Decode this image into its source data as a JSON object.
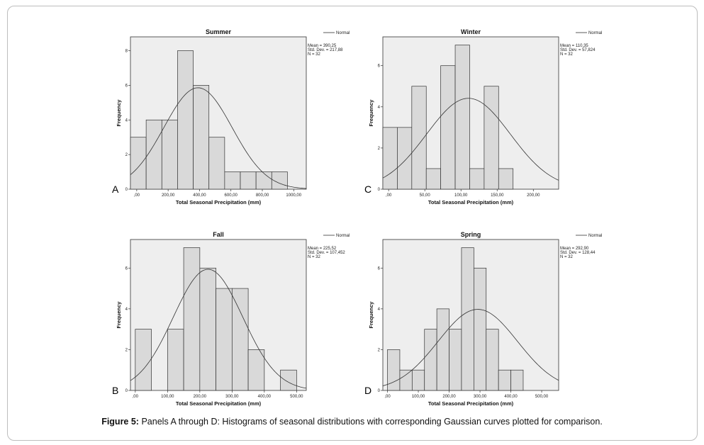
{
  "caption": {
    "label": "Figure 5:",
    "text": "Panels A through D: Histograms of seasonal distributions with corresponding Gaussian curves plotted for comparison."
  },
  "colors": {
    "bar_fill": "#d9d9d9",
    "plot_bg": "#eeeeee",
    "axis": "#333333",
    "curve": "#333333"
  },
  "chart_data": [
    {
      "type": "bar",
      "panel": "A",
      "title": "Summer",
      "xlabel": "Total Seasonal Precipitation (mm)",
      "ylabel": "Frequency",
      "legend": "Normal",
      "stats": [
        "Mean = 390,25",
        "Std. Dev. = 217,88",
        "N = 32"
      ],
      "mean": 390.25,
      "sd": 217.88,
      "n": 32,
      "bin_start": -40,
      "bin_width": 100,
      "values": [
        3,
        4,
        4,
        8,
        6,
        3,
        1,
        1,
        1,
        1
      ],
      "xlim": [
        -40,
        1080
      ],
      "ylim": [
        0,
        8.8
      ],
      "xticks": [
        0,
        200,
        400,
        600,
        800,
        1000
      ],
      "xtick_labels": [
        ",00",
        "200,00",
        "400,00",
        "600,00",
        "800,00",
        "1000,00"
      ],
      "yticks": [
        0,
        2,
        4,
        6,
        8
      ],
      "ytick_labels": [
        "0",
        "2",
        "4",
        "6",
        "8"
      ]
    },
    {
      "type": "bar",
      "panel": "C",
      "title": "Winter",
      "xlabel": "Total Seasonal Precipitation (mm)",
      "ylabel": "Frequency",
      "legend": "Normal",
      "stats": [
        "Mean = 110,35",
        "Std. Dev. = 57,824",
        "N = 32"
      ],
      "mean": 110.35,
      "sd": 57.824,
      "n": 32,
      "bin_start": -8,
      "bin_width": 20,
      "values": [
        3,
        3,
        5,
        1,
        6,
        7,
        1,
        5,
        1
      ],
      "xlim": [
        -8,
        235
      ],
      "ylim": [
        0,
        7.4
      ],
      "xticks": [
        0,
        50,
        100,
        150,
        200
      ],
      "xtick_labels": [
        ",00",
        "50,00",
        "100,00",
        "150,00",
        "200,00"
      ],
      "yticks": [
        0,
        2,
        4,
        6
      ],
      "ytick_labels": [
        "0",
        "2",
        "4",
        "6"
      ]
    },
    {
      "type": "bar",
      "panel": "B",
      "title": "Fall",
      "xlabel": "Total Seasonal Precipitation (mm)",
      "ylabel": "Frequency",
      "legend": "Normal",
      "stats": [
        "Mean = 225,52",
        "Std. Dev. = 107,452",
        "N = 32"
      ],
      "mean": 225.52,
      "sd": 107.452,
      "n": 32,
      "bin_start": 0,
      "bin_width": 50,
      "values": [
        3,
        0,
        3,
        7,
        6,
        5,
        5,
        2,
        0,
        1
      ],
      "xlim": [
        -15,
        530
      ],
      "ylim": [
        0,
        7.4
      ],
      "xticks": [
        0,
        100,
        200,
        300,
        400,
        500
      ],
      "xtick_labels": [
        ",00",
        "100,00",
        "200,00",
        "300,00",
        "400,00",
        "500,00"
      ],
      "yticks": [
        0,
        2,
        4,
        6
      ],
      "ytick_labels": [
        "0",
        "2",
        "4",
        "6"
      ]
    },
    {
      "type": "bar",
      "panel": "D",
      "title": "Spring",
      "xlabel": "Total Seasonal Precipitation (mm)",
      "ylabel": "Frequency",
      "legend": "Normal",
      "stats": [
        "Mean = 292,90",
        "Std. Dev. = 128,44",
        "N = 32"
      ],
      "mean": 292.9,
      "sd": 128.44,
      "n": 32,
      "bin_start": 0,
      "bin_width": 40,
      "values": [
        2,
        1,
        1,
        3,
        4,
        3,
        7,
        6,
        3,
        1,
        1
      ],
      "xlim": [
        -15,
        555
      ],
      "ylim": [
        0,
        7.4
      ],
      "xticks": [
        0,
        100,
        200,
        300,
        400,
        500
      ],
      "xtick_labels": [
        ",00",
        "100,00",
        "200,00",
        "300,00",
        "400,00",
        "500,00"
      ],
      "yticks": [
        0,
        2,
        4,
        6
      ],
      "ytick_labels": [
        "0",
        "2",
        "4",
        "6"
      ]
    }
  ]
}
